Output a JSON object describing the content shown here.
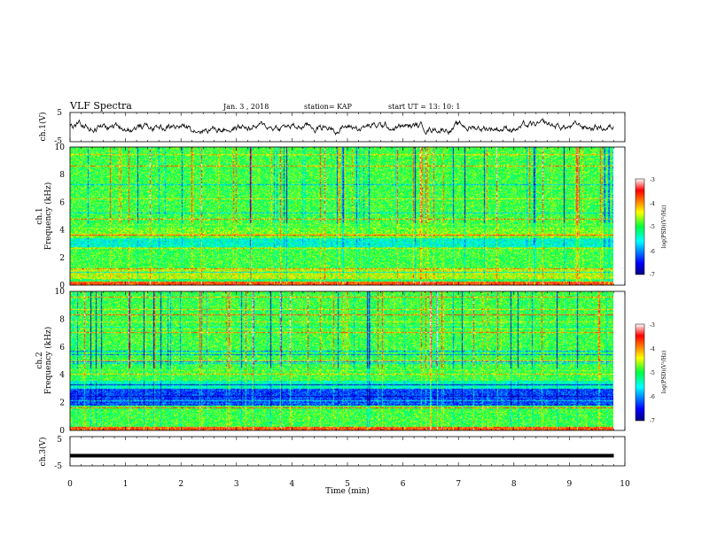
{
  "header": {
    "title": "VLF Spectra",
    "date": "Jan. 3 , 2018",
    "station": "station= KAP",
    "start": "start UT = 13: 10: 1"
  },
  "chart_data": [
    {
      "type": "line",
      "panel": "ch1-waveform",
      "ylabel": "ch.1(V)",
      "ylim": [
        -5,
        5
      ],
      "yticks": [
        "5",
        "-5"
      ],
      "xlim": [
        0,
        10
      ],
      "series": [
        {
          "values": "noisy waveform, mean ≈ 0 V, amplitude ≈ ±2.5 V, spanning 0–9.8 min"
        }
      ]
    },
    {
      "type": "heatmap",
      "panel": "ch1-spectrogram",
      "ylabel": [
        "ch.1",
        "Frequency (kHz)"
      ],
      "ylim": [
        0,
        10
      ],
      "yticks": [
        "0",
        "2",
        "4",
        "6",
        "8",
        "10"
      ],
      "xlim": [
        0,
        9.8
      ],
      "colorbar": {
        "label": "log(PSD)(V²/Hz)",
        "range": [
          -7,
          -3
        ],
        "ticks": [
          "-3",
          "-4",
          "-5",
          "-6",
          "-7"
        ]
      }
    },
    {
      "type": "heatmap",
      "panel": "ch2-spectrogram",
      "ylabel": [
        "ch.2",
        "Frequency (kHz)"
      ],
      "ylim": [
        0,
        10
      ],
      "yticks": [
        "0",
        "2",
        "4",
        "6",
        "8",
        "10"
      ],
      "xlim": [
        0,
        9.8
      ],
      "colorbar": {
        "label": "log(PSD)(V²/Hz)",
        "range": [
          -7,
          -3
        ],
        "ticks": [
          "-3",
          "-4",
          "-5",
          "-6",
          "-7"
        ]
      }
    },
    {
      "type": "line",
      "panel": "ch3-waveform",
      "ylabel": "ch.3(V)",
      "ylim": [
        -5,
        5
      ],
      "yticks": [
        "5",
        "-5"
      ],
      "xlabel": "Time (min)",
      "xlim": [
        0,
        10
      ],
      "xticks": [
        "0",
        "1",
        "2",
        "3",
        "4",
        "5",
        "6",
        "7",
        "8",
        "9",
        "10"
      ],
      "series": [
        {
          "values": "flat ≈ -1.5 V from 0 to 9.8 min"
        }
      ]
    }
  ]
}
